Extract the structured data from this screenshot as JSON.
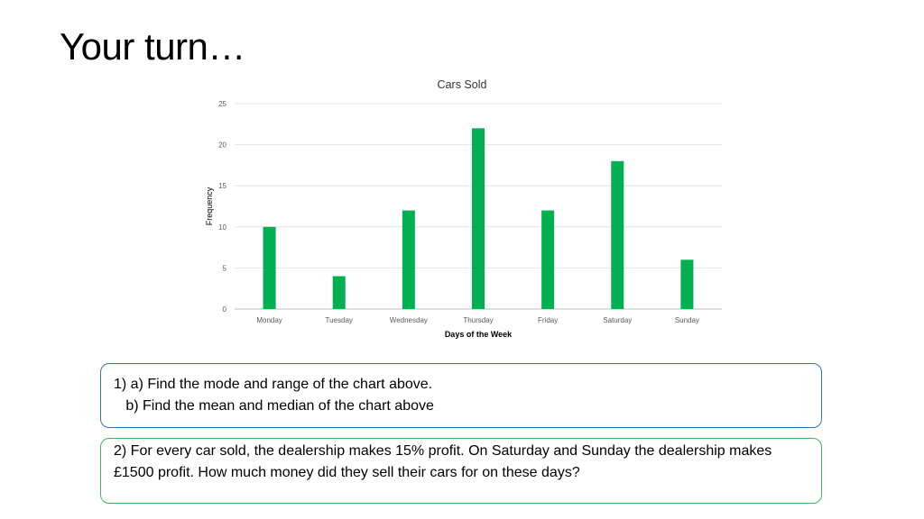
{
  "slide": {
    "title": "Your turn…"
  },
  "chart_data": {
    "type": "bar",
    "title": "Cars Sold",
    "xlabel": "Days of the Week",
    "ylabel": "Frequency",
    "categories": [
      "Monday",
      "Tuesday",
      "Wednesday",
      "Thursday",
      "Friday",
      "Saturday",
      "Sunday"
    ],
    "values": [
      10,
      4,
      12,
      22,
      12,
      18,
      6
    ],
    "ylim": [
      0,
      25
    ],
    "yticks": [
      0,
      5,
      10,
      15,
      20,
      25
    ],
    "grid": true,
    "legend": "none",
    "bar_color": "#00b050"
  },
  "questions": {
    "q1_line1": "1) a) Find the mode and range of the chart above.",
    "q1_line2": "   b) Find the mean and median of the chart above",
    "q2_text": "2) For every car sold, the dealership makes 15% profit. On Saturday and Sunday the dealership makes £1500 profit. How much money did they sell their cars for on these days?"
  },
  "colors": {
    "box1_border": "#2e75b6",
    "box2_border": "#3fb45b"
  }
}
